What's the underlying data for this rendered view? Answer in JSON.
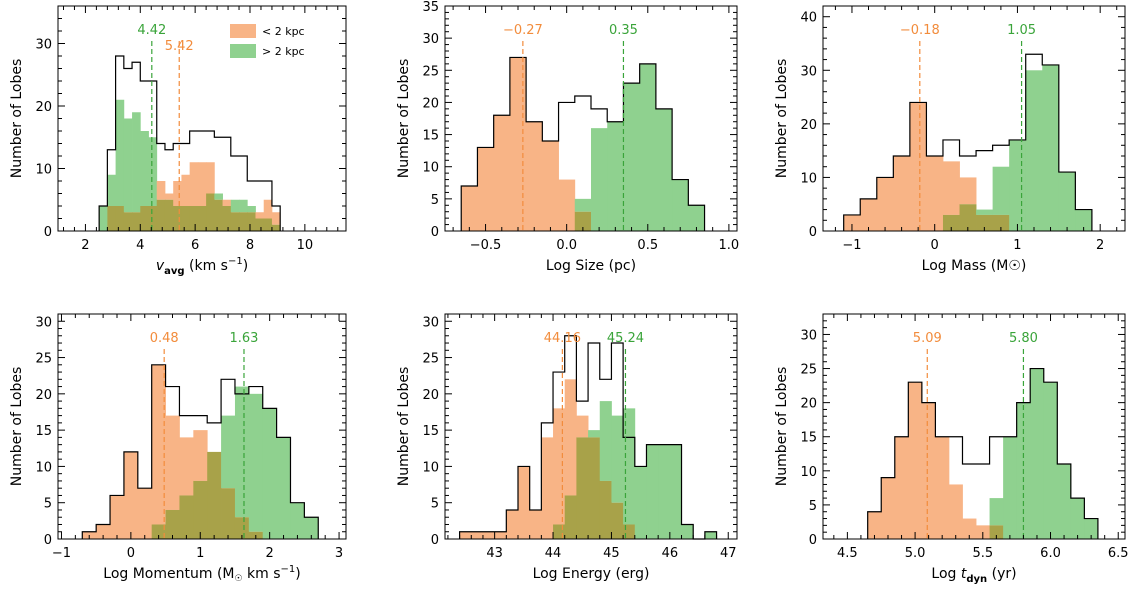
{
  "colors": {
    "near": "#f8b486",
    "far": "#8fd18f",
    "overlap": "#a8a249",
    "near_line": "#f28c3c",
    "far_line": "#3aa43a",
    "total": "#000000"
  },
  "chart_data": [
    {
      "type": "bar",
      "panel": "vavg",
      "xlabel": "v_avg (km s⁻¹)",
      "xlabel_parts": {
        "main": "v",
        "sub": "avg",
        "rest": " (km s",
        "sup": "−1",
        "end": ")"
      },
      "ylabel": "Number of Lobes",
      "xlim": [
        1.0,
        11.5
      ],
      "ylim": [
        0,
        36
      ],
      "xticks": [
        2,
        4,
        6,
        8,
        10
      ],
      "xtick_labels": [
        "2",
        "4",
        "6",
        "8",
        "10"
      ],
      "yticks": [
        0,
        10,
        20,
        30
      ],
      "ytick_labels": [
        "0",
        "10",
        "20",
        "30"
      ],
      "bin_edges": [
        2.5,
        2.8,
        3.1,
        3.4,
        3.7,
        4.0,
        4.3,
        4.6,
        4.9,
        5.2,
        5.5,
        5.8,
        6.1,
        6.4,
        6.7,
        7.0,
        7.3,
        7.6,
        7.9,
        8.2,
        8.5,
        8.8,
        9.1
      ],
      "series": [
        {
          "name": "< 2 kpc",
          "values": [
            0,
            4,
            4,
            3,
            3,
            4,
            4,
            8,
            6,
            8,
            9,
            11,
            11,
            11,
            5,
            5,
            3,
            3,
            3,
            3,
            5,
            3
          ]
        },
        {
          "name": "> 2 kpc",
          "values": [
            4,
            9,
            21,
            18,
            19,
            16,
            15,
            5,
            5,
            4,
            4,
            4,
            4,
            6,
            6,
            4,
            5,
            5,
            4,
            2,
            2,
            1
          ]
        }
      ],
      "total": [
        4,
        13,
        28,
        26,
        27,
        24,
        24,
        14,
        13,
        14,
        14,
        16,
        16,
        16,
        15,
        15,
        12,
        12,
        8,
        8,
        8,
        4
      ],
      "medians": [
        {
          "series": "> 2 kpc",
          "value": 4.42,
          "label": "4.42"
        },
        {
          "series": "< 2 kpc",
          "value": 5.42,
          "label": "5.42"
        }
      ],
      "legend": {
        "position": "top-right",
        "entries": [
          "< 2 kpc",
          "> 2 kpc"
        ]
      }
    },
    {
      "type": "bar",
      "panel": "size",
      "xlabel": "Log Size (pc)",
      "ylabel": "Number of Lobes",
      "xlim": [
        -0.75,
        1.05
      ],
      "ylim": [
        0,
        35
      ],
      "xticks": [
        -0.5,
        0.0,
        0.5,
        1.0
      ],
      "xtick_labels": [
        "−0.5",
        "0.0",
        "0.5",
        "1.0"
      ],
      "yticks": [
        0,
        5,
        10,
        15,
        20,
        25,
        30,
        35
      ],
      "ytick_labels": [
        "0",
        "5",
        "10",
        "15",
        "20",
        "25",
        "30",
        "35"
      ],
      "bin_edges": [
        -0.65,
        -0.55,
        -0.45,
        -0.35,
        -0.25,
        -0.15,
        -0.05,
        0.05,
        0.15,
        0.25,
        0.35,
        0.45,
        0.55,
        0.65,
        0.75,
        0.85
      ],
      "series": [
        {
          "name": "< 2 kpc",
          "values": [
            7,
            13,
            18,
            27,
            17,
            14,
            8,
            3,
            0,
            0,
            0,
            0,
            0,
            0,
            0
          ]
        },
        {
          "name": "> 2 kpc",
          "values": [
            0,
            0,
            0,
            0,
            0,
            0,
            0,
            5,
            16,
            17,
            23,
            26,
            19,
            8,
            4
          ]
        }
      ],
      "total": [
        7,
        13,
        18,
        27,
        17,
        14,
        20,
        21,
        19,
        17,
        23,
        26,
        19,
        8,
        4
      ],
      "medians": [
        {
          "series": "< 2 kpc",
          "value": -0.27,
          "label": "−0.27"
        },
        {
          "series": "> 2 kpc",
          "value": 0.35,
          "label": "0.35"
        }
      ]
    },
    {
      "type": "bar",
      "panel": "mass",
      "xlabel": "Log Mass (M☉)",
      "ylabel": "Number of Lobes",
      "xlim": [
        -1.35,
        2.3
      ],
      "ylim": [
        0,
        42
      ],
      "xticks": [
        -1,
        0,
        1,
        2
      ],
      "xtick_labels": [
        "−1",
        "0",
        "1",
        "2"
      ],
      "yticks": [
        0,
        10,
        20,
        30,
        40
      ],
      "ytick_labels": [
        "0",
        "10",
        "20",
        "30",
        "40"
      ],
      "bin_edges": [
        -1.1,
        -0.9,
        -0.7,
        -0.5,
        -0.3,
        -0.1,
        0.1,
        0.3,
        0.5,
        0.7,
        0.9,
        1.1,
        1.3,
        1.5,
        1.7,
        1.9
      ],
      "series": [
        {
          "name": "< 2 kpc",
          "values": [
            3,
            6,
            10,
            14,
            24,
            14,
            13,
            10,
            3,
            3,
            0,
            0,
            0,
            0,
            0
          ]
        },
        {
          "name": "> 2 kpc",
          "values": [
            0,
            0,
            0,
            0,
            0,
            0,
            3,
            5,
            4,
            12,
            17,
            30,
            31,
            11,
            4
          ]
        }
      ],
      "total": [
        3,
        6,
        10,
        14,
        24,
        14,
        17,
        14,
        15,
        16,
        17,
        33,
        31,
        11,
        4
      ],
      "medians": [
        {
          "series": "< 2 kpc",
          "value": -0.18,
          "label": "−0.18"
        },
        {
          "series": "> 2 kpc",
          "value": 1.05,
          "label": "1.05"
        }
      ]
    },
    {
      "type": "bar",
      "panel": "momentum",
      "xlabel": "Log Momentum (M☉ km s⁻¹)",
      "xlabel_parts": {
        "main": "Log Momentum (M",
        "sun": "☉",
        "rest": " km s",
        "sup": "−1",
        "end": ")"
      },
      "ylabel": "Number of Lobes",
      "xlim": [
        -1.05,
        3.1
      ],
      "ylim": [
        0,
        31
      ],
      "xticks": [
        -1,
        0,
        1,
        2,
        3
      ],
      "xtick_labels": [
        "−1",
        "0",
        "1",
        "2",
        "3"
      ],
      "yticks": [
        0,
        5,
        10,
        15,
        20,
        25,
        30
      ],
      "ytick_labels": [
        "0",
        "5",
        "10",
        "15",
        "20",
        "25",
        "30"
      ],
      "bin_edges": [
        -0.7,
        -0.5,
        -0.3,
        -0.1,
        0.1,
        0.3,
        0.5,
        0.7,
        0.9,
        1.1,
        1.3,
        1.5,
        1.7,
        1.9,
        2.1,
        2.3,
        2.5,
        2.7
      ],
      "series": [
        {
          "name": "< 2 kpc",
          "values": [
            1,
            2,
            6,
            12,
            7,
            24,
            17,
            14,
            15,
            12,
            7,
            3,
            1,
            0,
            0,
            0,
            0
          ]
        },
        {
          "name": "> 2 kpc",
          "values": [
            0,
            0,
            0,
            0,
            0,
            2,
            4,
            6,
            8,
            12,
            17,
            21,
            20,
            18,
            14,
            5,
            3
          ]
        }
      ],
      "total": [
        1,
        2,
        6,
        12,
        7,
        24,
        21,
        17,
        17,
        16,
        22,
        20,
        21,
        18,
        14,
        5,
        3
      ],
      "medians": [
        {
          "series": "< 2 kpc",
          "value": 0.48,
          "label": "0.48"
        },
        {
          "series": "> 2 kpc",
          "value": 1.63,
          "label": "1.63"
        }
      ]
    },
    {
      "type": "bar",
      "panel": "energy",
      "xlabel": "Log Energy (erg)",
      "ylabel": "Number of Lobes",
      "xlim": [
        42.15,
        47.15
      ],
      "ylim": [
        0,
        31
      ],
      "xticks": [
        43,
        44,
        45,
        46,
        47
      ],
      "xtick_labels": [
        "43",
        "44",
        "45",
        "46",
        "47"
      ],
      "yticks": [
        0,
        5,
        10,
        15,
        20,
        25,
        30
      ],
      "ytick_labels": [
        "0",
        "5",
        "10",
        "15",
        "20",
        "25",
        "30"
      ],
      "bin_edges": [
        42.4,
        42.6,
        42.8,
        43.0,
        43.2,
        43.4,
        43.6,
        43.8,
        44.0,
        44.2,
        44.4,
        44.6,
        44.8,
        45.0,
        45.2,
        45.4,
        45.6,
        45.8,
        46.0,
        46.2,
        46.4,
        46.6,
        46.8
      ],
      "series": [
        {
          "name": "< 2 kpc",
          "values": [
            1,
            1,
            1,
            1,
            4,
            10,
            4,
            14,
            18,
            22,
            17,
            14,
            8,
            5,
            2,
            0,
            0,
            0,
            0,
            0,
            0,
            0
          ]
        },
        {
          "name": "> 2 kpc",
          "values": [
            0,
            0,
            0,
            0,
            0,
            0,
            0,
            0,
            2,
            6,
            14,
            15,
            19,
            17,
            18,
            10,
            13,
            13,
            13,
            2,
            0,
            1
          ]
        }
      ],
      "total": [
        1,
        1,
        1,
        1,
        4,
        10,
        4,
        16,
        23,
        28,
        19,
        27,
        22,
        27,
        14,
        10,
        13,
        13,
        13,
        2,
        0,
        1
      ],
      "medians": [
        {
          "series": "< 2 kpc",
          "value": 44.16,
          "label": "44.16"
        },
        {
          "series": "> 2 kpc",
          "value": 45.24,
          "label": "45.24"
        }
      ]
    },
    {
      "type": "bar",
      "panel": "tdyn",
      "xlabel": "Log t_dyn (yr)",
      "xlabel_parts": {
        "main": "Log t",
        "sub": "dyn",
        "rest": " (yr)"
      },
      "ylabel": "Number of Lobes",
      "xlim": [
        4.32,
        6.55
      ],
      "ylim": [
        0,
        33
      ],
      "xticks": [
        4.5,
        5.0,
        5.5,
        6.0,
        6.5
      ],
      "xtick_labels": [
        "4.5",
        "5.0",
        "5.5",
        "6.0",
        "6.5"
      ],
      "yticks": [
        0,
        5,
        10,
        15,
        20,
        25,
        30
      ],
      "ytick_labels": [
        "0",
        "5",
        "10",
        "15",
        "20",
        "25",
        "30"
      ],
      "bin_edges": [
        4.65,
        4.75,
        4.85,
        4.95,
        5.05,
        5.15,
        5.25,
        5.35,
        5.45,
        5.55,
        5.65,
        5.75,
        5.85,
        5.95,
        6.05,
        6.15,
        6.25,
        6.35
      ],
      "series": [
        {
          "name": "< 2 kpc",
          "values": [
            4,
            9,
            15,
            23,
            20,
            15,
            8,
            3,
            2,
            2,
            0,
            0,
            0,
            0,
            0,
            0,
            0
          ]
        },
        {
          "name": "> 2 kpc",
          "values": [
            0,
            0,
            0,
            0,
            0,
            0,
            0,
            0,
            0,
            6,
            15,
            20,
            25,
            23,
            11,
            6,
            3
          ]
        }
      ],
      "total": [
        4,
        9,
        15,
        23,
        20,
        15,
        15,
        11,
        11,
        15,
        15,
        20,
        25,
        23,
        11,
        6,
        3
      ],
      "medians": [
        {
          "series": "< 2 kpc",
          "value": 5.09,
          "label": "5.09"
        },
        {
          "series": "> 2 kpc",
          "value": 5.8,
          "label": "5.80"
        }
      ]
    }
  ]
}
